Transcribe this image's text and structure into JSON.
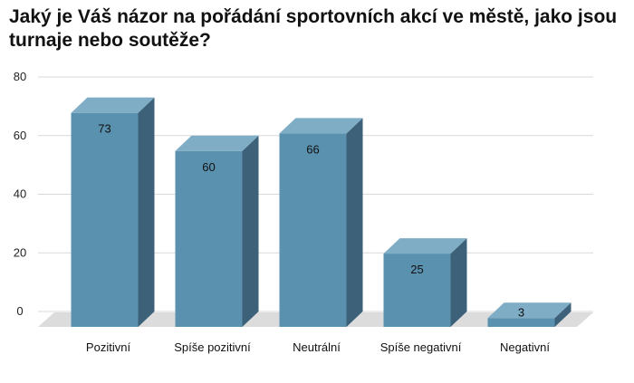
{
  "chart_data": {
    "type": "bar",
    "style": "3d",
    "title": "Jaký je Váš názor na pořádání sportovních akcí ve městě, jako jsou turnaje nebo soutěže?",
    "categories": [
      "Pozitivní",
      "Spíše pozitivní",
      "Neutrální",
      "Spíše negativní",
      "Negativní"
    ],
    "values": [
      73,
      60,
      66,
      25,
      3
    ],
    "xlabel": "",
    "ylabel": "",
    "ylim": [
      0,
      80
    ],
    "yticks": [
      0,
      20,
      40,
      60,
      80
    ],
    "grid": true,
    "legend": "none",
    "colors": {
      "bar_front": "#5a91ae",
      "bar_side": "#3c6178",
      "bar_top": "#7fadc6",
      "floor": "#dcdcdc",
      "grid": "#d9d9d9",
      "last_value_label": "#a9c4d3"
    }
  }
}
